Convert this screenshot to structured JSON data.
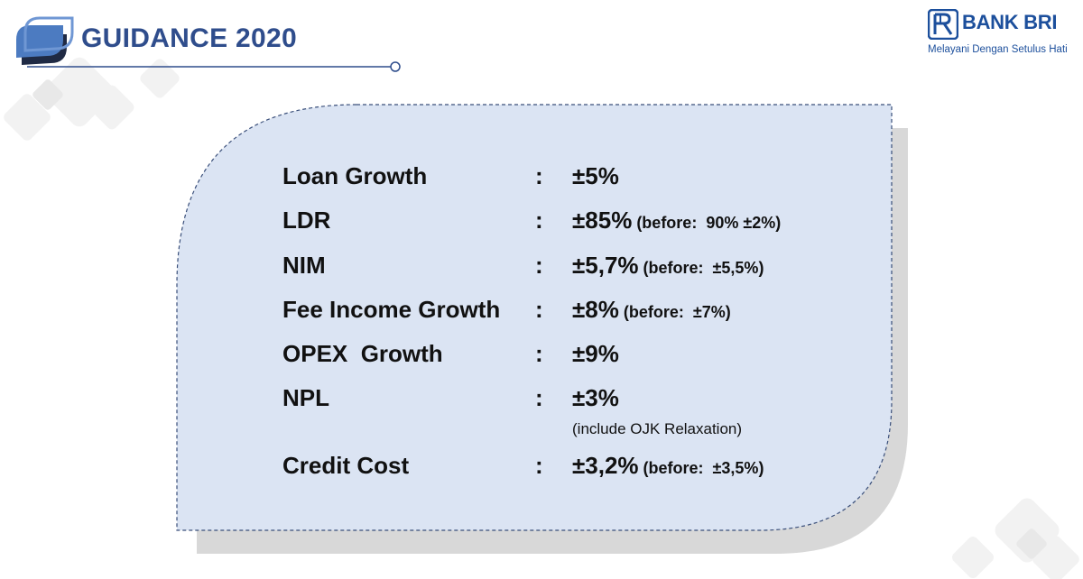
{
  "header": {
    "title": "GUIDANCE 2020"
  },
  "logo": {
    "name": "BANK BRI",
    "tagline": "Melayani Dengan Setulus Hati"
  },
  "guidance": {
    "separator": ":",
    "rows": [
      {
        "label": "Loan Growth",
        "value": "±5%",
        "before": "",
        "note": ""
      },
      {
        "label": "LDR",
        "value": "±85%",
        "before": " (before:  90% ±2%)",
        "note": ""
      },
      {
        "label": "NIM",
        "value": "±5,7%",
        "before": " (before:  ±5,5%)",
        "note": ""
      },
      {
        "label": "Fee Income Growth",
        "value": "±8%",
        "before": " (before:  ±7%)",
        "note": ""
      },
      {
        "label": "OPEX  Growth",
        "value": "±9%",
        "before": "",
        "note": ""
      },
      {
        "label": "NPL",
        "value": "±3%",
        "before": "",
        "note": "(include OJK Relaxation)"
      },
      {
        "label": "Credit Cost",
        "value": "±3,2%",
        "before": " (before:  ±3,5%)",
        "note": ""
      }
    ]
  },
  "colors": {
    "title": "#2f4d8c",
    "brand": "#1c4f9c",
    "card_fill": "#dbe4f3",
    "card_border": "#3a4f7a",
    "shadow": "#d8d8d8"
  }
}
